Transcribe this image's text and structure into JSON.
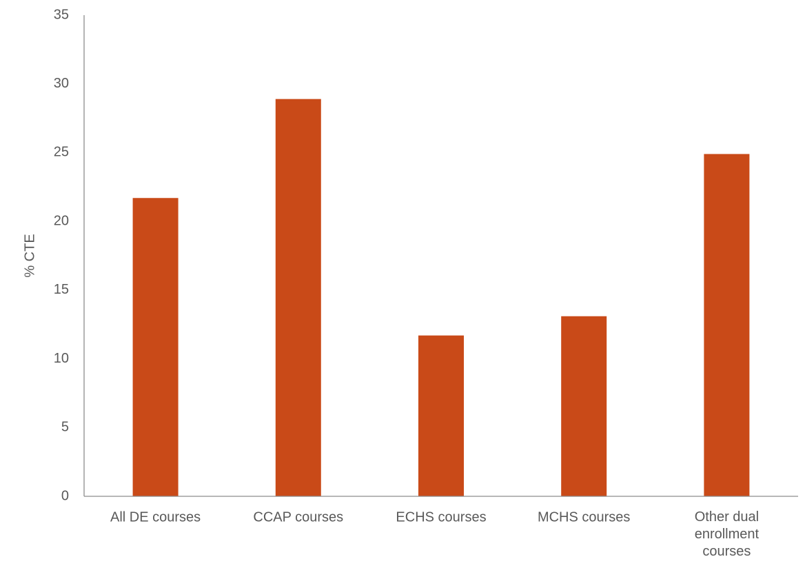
{
  "chart_data": {
    "type": "bar",
    "y_label": "% CTE",
    "categories": [
      "All DE courses",
      "CCAP courses",
      "ECHS courses",
      "MCHS courses",
      "Other dual enrollment courses"
    ],
    "values": [
      21.7,
      28.9,
      11.7,
      13.1,
      24.9
    ],
    "color": "#c94a18",
    "ylim": [
      0,
      35
    ],
    "yticks": [
      0,
      5,
      10,
      15,
      20,
      25,
      30,
      35
    ],
    "grid": false
  }
}
